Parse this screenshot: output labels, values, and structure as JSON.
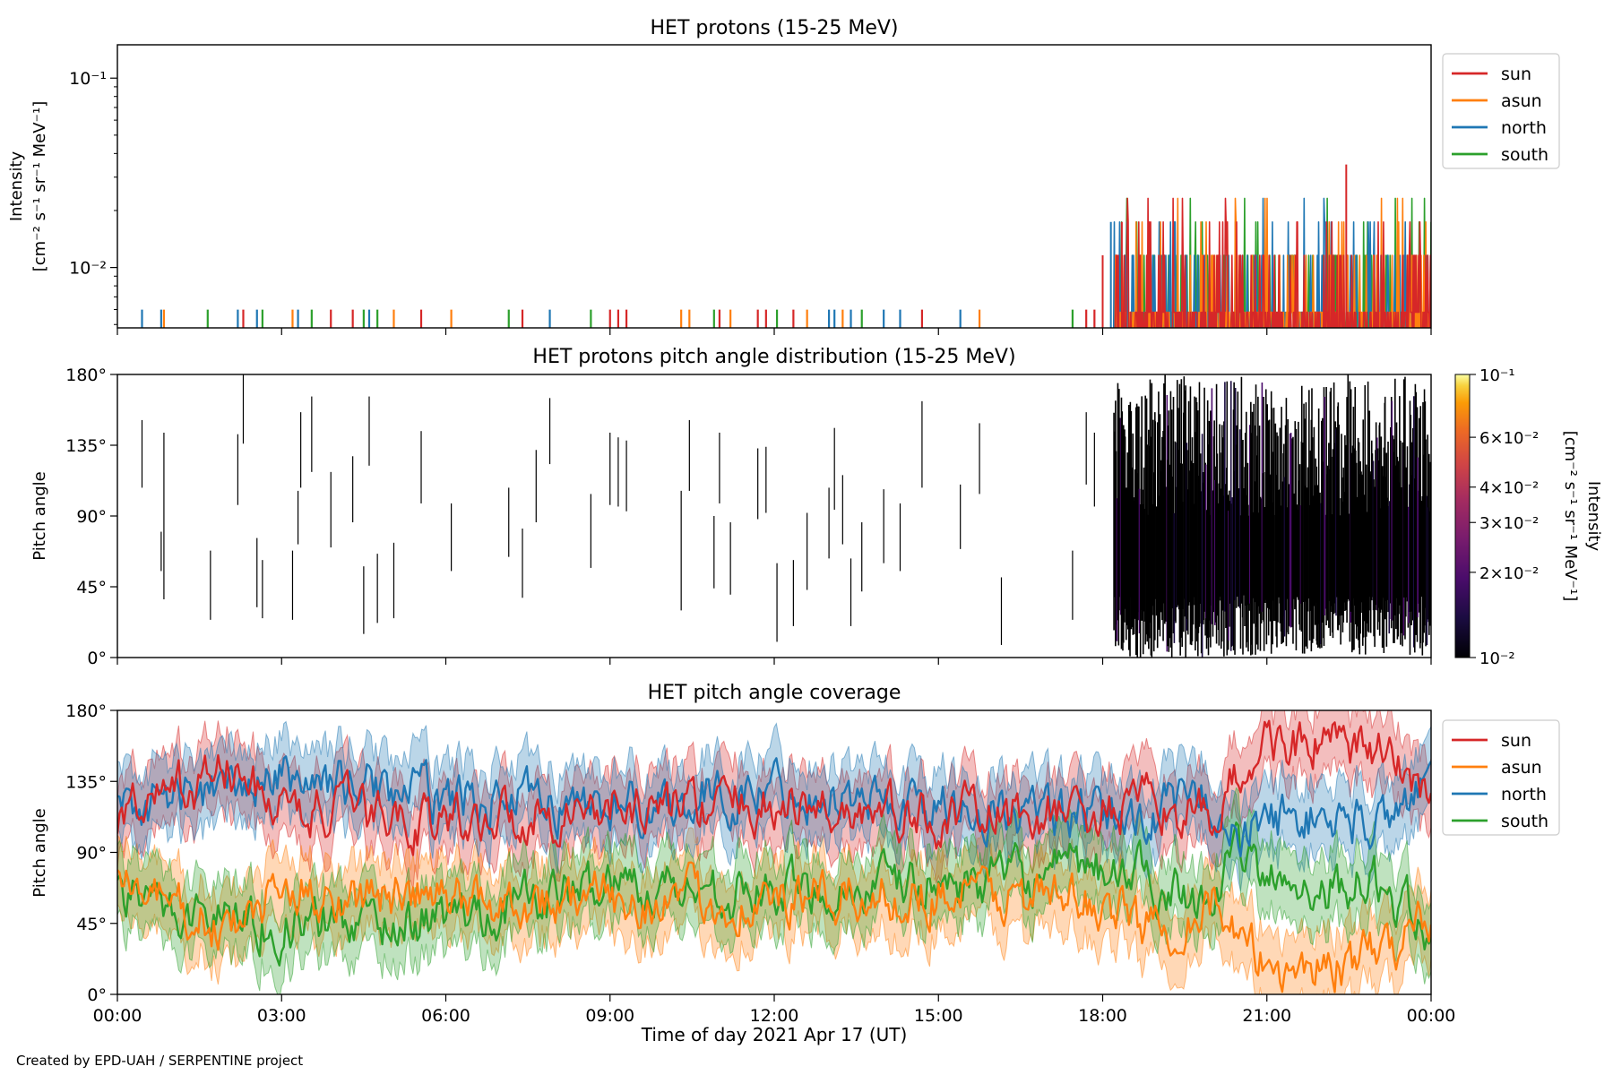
{
  "figure": {
    "credit": "Created by EPD-UAH / SERPENTINE project",
    "xlabel": "Time of day 2021 Apr 17 (UT)",
    "xticks": [
      "00:00",
      "03:00",
      "06:00",
      "09:00",
      "12:00",
      "15:00",
      "18:00",
      "21:00",
      "00:00"
    ]
  },
  "series_colors": {
    "sun": "#d62728",
    "asun": "#ff7f0e",
    "north": "#1f77b4",
    "south": "#2ca02c"
  },
  "chart_data": [
    {
      "id": "intensity",
      "type": "line",
      "title": "HET protons (15-25 MeV)",
      "ylabel_line1": "Intensity",
      "ylabel_line2": "[cm⁻² s⁻¹ sr⁻¹ MeV⁻¹]",
      "yscale": "log",
      "ylim": [
        0.0048,
        0.15
      ],
      "yticks": [
        {
          "value": 0.01,
          "label": "10⁻²"
        },
        {
          "value": 0.1,
          "label": "10⁻¹"
        }
      ],
      "xlim_hours": [
        0,
        24
      ],
      "legend": [
        "sun",
        "asun",
        "north",
        "south"
      ],
      "legend_position": "upper-right-outside",
      "sparse_events_before_18h": [
        {
          "t": 0.45,
          "s": "north",
          "v": 0.0058
        },
        {
          "t": 0.8,
          "s": "north",
          "v": 0.0058
        },
        {
          "t": 0.85,
          "s": "asun",
          "v": 0.0058
        },
        {
          "t": 1.65,
          "s": "south",
          "v": 0.0058
        },
        {
          "t": 2.2,
          "s": "north",
          "v": 0.0058
        },
        {
          "t": 2.3,
          "s": "sun",
          "v": 0.0058
        },
        {
          "t": 2.55,
          "s": "north",
          "v": 0.0058
        },
        {
          "t": 2.65,
          "s": "south",
          "v": 0.0058
        },
        {
          "t": 3.2,
          "s": "asun",
          "v": 0.0058
        },
        {
          "t": 3.3,
          "s": "north",
          "v": 0.0058
        },
        {
          "t": 3.55,
          "s": "south",
          "v": 0.0058
        },
        {
          "t": 3.9,
          "s": "sun",
          "v": 0.0058
        },
        {
          "t": 4.3,
          "s": "sun",
          "v": 0.0058
        },
        {
          "t": 4.5,
          "s": "south",
          "v": 0.0058
        },
        {
          "t": 4.6,
          "s": "north",
          "v": 0.0058
        },
        {
          "t": 4.75,
          "s": "south",
          "v": 0.0058
        },
        {
          "t": 5.05,
          "s": "asun",
          "v": 0.0058
        },
        {
          "t": 5.55,
          "s": "sun",
          "v": 0.0058
        },
        {
          "t": 6.1,
          "s": "asun",
          "v": 0.0058
        },
        {
          "t": 7.15,
          "s": "south",
          "v": 0.0058
        },
        {
          "t": 7.4,
          "s": "sun",
          "v": 0.0058
        },
        {
          "t": 7.9,
          "s": "north",
          "v": 0.0058
        },
        {
          "t": 8.65,
          "s": "south",
          "v": 0.0058
        },
        {
          "t": 9.0,
          "s": "sun",
          "v": 0.0058
        },
        {
          "t": 9.15,
          "s": "sun",
          "v": 0.0058
        },
        {
          "t": 9.3,
          "s": "sun",
          "v": 0.0058
        },
        {
          "t": 10.3,
          "s": "asun",
          "v": 0.0058
        },
        {
          "t": 10.45,
          "s": "asun",
          "v": 0.0058
        },
        {
          "t": 10.9,
          "s": "south",
          "v": 0.0058
        },
        {
          "t": 11.0,
          "s": "sun",
          "v": 0.0058
        },
        {
          "t": 11.2,
          "s": "asun",
          "v": 0.0058
        },
        {
          "t": 11.7,
          "s": "sun",
          "v": 0.0058
        },
        {
          "t": 11.85,
          "s": "sun",
          "v": 0.0058
        },
        {
          "t": 12.05,
          "s": "south",
          "v": 0.0058
        },
        {
          "t": 12.35,
          "s": "sun",
          "v": 0.0058
        },
        {
          "t": 12.6,
          "s": "asun",
          "v": 0.0058
        },
        {
          "t": 13.0,
          "s": "north",
          "v": 0.0058
        },
        {
          "t": 13.1,
          "s": "north",
          "v": 0.0058
        },
        {
          "t": 13.25,
          "s": "asun",
          "v": 0.0058
        },
        {
          "t": 13.4,
          "s": "north",
          "v": 0.0058
        },
        {
          "t": 13.6,
          "s": "south",
          "v": 0.0058
        },
        {
          "t": 14.0,
          "s": "north",
          "v": 0.0058
        },
        {
          "t": 14.3,
          "s": "north",
          "v": 0.0058
        },
        {
          "t": 14.7,
          "s": "sun",
          "v": 0.0058
        },
        {
          "t": 15.4,
          "s": "north",
          "v": 0.0058
        },
        {
          "t": 15.75,
          "s": "asun",
          "v": 0.0058
        },
        {
          "t": 17.45,
          "s": "south",
          "v": 0.0058
        },
        {
          "t": 17.7,
          "s": "sun",
          "v": 0.0058
        },
        {
          "t": 17.85,
          "s": "sun",
          "v": 0.0058
        }
      ],
      "dense_period_hours": [
        18.0,
        24.0
      ],
      "dense_levels": [
        0.0058,
        0.0116,
        0.0174,
        0.0232
      ],
      "dense_peak": {
        "t": 22.45,
        "v": 0.035
      }
    },
    {
      "id": "pad",
      "type": "heatmap",
      "title": "HET protons pitch angle distribution (15-25 MeV)",
      "ylabel": "Pitch angle",
      "ylim": [
        0,
        180
      ],
      "yticks": [
        {
          "value": 0,
          "label": "0°"
        },
        {
          "value": 45,
          "label": "45°"
        },
        {
          "value": 90,
          "label": "90°"
        },
        {
          "value": 135,
          "label": "135°"
        },
        {
          "value": 180,
          "label": "180°"
        }
      ],
      "xlim_hours": [
        0,
        24
      ],
      "colorbar": {
        "scale": "log",
        "range": [
          0.01,
          0.1
        ],
        "colormap": "inferno",
        "ticks": [
          {
            "value": 0.01,
            "label": "10⁻²"
          },
          {
            "value": 0.02,
            "label": "2×10⁻²"
          },
          {
            "value": 0.03,
            "label": "3×10⁻²"
          },
          {
            "value": 0.04,
            "label": "4×10⁻²"
          },
          {
            "value": 0.06,
            "label": "6×10⁻²"
          },
          {
            "value": 0.1,
            "label": "10⁻¹"
          }
        ],
        "label_line1": "Intensity",
        "label_line2": "[cm⁻² s⁻¹ sr⁻¹ MeV⁻¹]"
      },
      "sparse_segments_before_18h": [
        [
          0.45,
          108,
          151
        ],
        [
          0.8,
          55,
          80
        ],
        [
          0.85,
          37,
          143
        ],
        [
          1.7,
          24,
          68
        ],
        [
          2.2,
          97,
          142
        ],
        [
          2.3,
          136,
          180
        ],
        [
          2.55,
          32,
          76
        ],
        [
          2.65,
          25,
          62
        ],
        [
          3.2,
          24,
          68
        ],
        [
          3.3,
          72,
          106
        ],
        [
          3.35,
          108,
          156
        ],
        [
          3.55,
          118,
          166
        ],
        [
          3.9,
          70,
          118
        ],
        [
          4.3,
          86,
          128
        ],
        [
          4.5,
          15,
          58
        ],
        [
          4.6,
          122,
          166
        ],
        [
          4.75,
          22,
          66
        ],
        [
          5.05,
          25,
          73
        ],
        [
          5.55,
          98,
          144
        ],
        [
          6.1,
          55,
          98
        ],
        [
          7.15,
          64,
          108
        ],
        [
          7.4,
          38,
          82
        ],
        [
          7.65,
          86,
          132
        ],
        [
          7.9,
          123,
          165
        ],
        [
          8.65,
          57,
          104
        ],
        [
          9.0,
          97,
          143
        ],
        [
          9.15,
          96,
          140
        ],
        [
          9.3,
          93,
          138
        ],
        [
          10.3,
          30,
          106
        ],
        [
          10.45,
          106,
          151
        ],
        [
          10.9,
          44,
          90
        ],
        [
          11.0,
          98,
          143
        ],
        [
          11.2,
          40,
          86
        ],
        [
          11.7,
          88,
          133
        ],
        [
          11.85,
          92,
          134
        ],
        [
          12.05,
          10,
          60
        ],
        [
          12.35,
          20,
          62
        ],
        [
          12.6,
          43,
          92
        ],
        [
          13.0,
          63,
          108
        ],
        [
          13.1,
          94,
          146
        ],
        [
          13.25,
          72,
          116
        ],
        [
          13.4,
          20,
          63
        ],
        [
          13.6,
          42,
          86
        ],
        [
          14.0,
          60,
          107
        ],
        [
          14.3,
          55,
          98
        ],
        [
          14.7,
          108,
          163
        ],
        [
          15.4,
          69,
          110
        ],
        [
          15.75,
          104,
          149
        ],
        [
          16.15,
          8,
          51
        ],
        [
          17.45,
          24,
          68
        ],
        [
          17.7,
          110,
          156
        ],
        [
          17.85,
          96,
          143
        ]
      ],
      "dense_period_hours": [
        18.2,
        24.0
      ]
    },
    {
      "id": "coverage",
      "type": "area",
      "title": "HET pitch angle coverage",
      "ylabel": "Pitch angle",
      "ylim": [
        0,
        180
      ],
      "yticks": [
        {
          "value": 0,
          "label": "0°"
        },
        {
          "value": 45,
          "label": "45°"
        },
        {
          "value": 90,
          "label": "90°"
        },
        {
          "value": 135,
          "label": "135°"
        },
        {
          "value": 180,
          "label": "180°"
        }
      ],
      "xlim_hours": [
        0,
        24
      ],
      "legend": [
        "sun",
        "asun",
        "north",
        "south"
      ],
      "legend_position": "upper-right-outside",
      "band_halfwidth_deg": 22,
      "series": [
        {
          "name": "sun",
          "x": [
            0,
            2,
            3,
            6,
            9,
            12,
            15,
            18,
            19,
            20,
            20.5,
            21,
            22,
            23,
            24
          ],
          "y": [
            110,
            142,
            118,
            110,
            118,
            120,
            112,
            115,
            120,
            110,
            140,
            160,
            158,
            152,
            130
          ]
        },
        {
          "name": "asun",
          "x": [
            0,
            2,
            3,
            6,
            9,
            12,
            15,
            18,
            19,
            20,
            20.5,
            21,
            22,
            23,
            24
          ],
          "y": [
            72,
            38,
            65,
            60,
            60,
            58,
            65,
            58,
            40,
            60,
            30,
            18,
            18,
            24,
            50
          ]
        },
        {
          "name": "north",
          "x": [
            0,
            2,
            3,
            6,
            9,
            12,
            15,
            18,
            19,
            20,
            20.5,
            21,
            22,
            23,
            24
          ],
          "y": [
            120,
            130,
            138,
            125,
            118,
            130,
            118,
            110,
            115,
            126,
            92,
            112,
            112,
            108,
            140
          ]
        },
        {
          "name": "south",
          "x": [
            0,
            2,
            3,
            6,
            9,
            12,
            15,
            18,
            19,
            20,
            20.5,
            21,
            22,
            23,
            24
          ],
          "y": [
            60,
            50,
            44,
            48,
            70,
            65,
            70,
            78,
            72,
            62,
            88,
            72,
            70,
            70,
            40
          ]
        }
      ]
    }
  ]
}
